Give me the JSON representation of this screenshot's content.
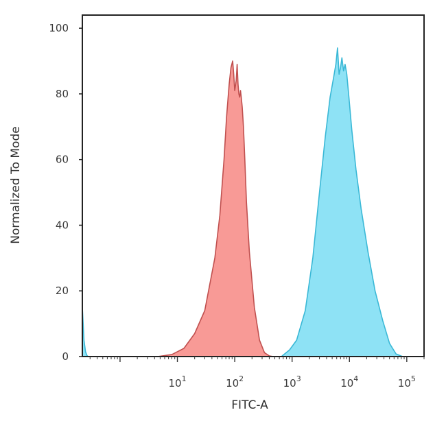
{
  "chart_data": {
    "type": "area",
    "title": "",
    "xlabel": "FITC-A",
    "ylabel": "Normalized To Mode",
    "x_scale": "log",
    "xlim": [
      0.22,
      200000
    ],
    "ylim": [
      0,
      104
    ],
    "x_ticks": [
      {
        "value": 10,
        "base": "10",
        "exp": "1"
      },
      {
        "value": 100,
        "base": "10",
        "exp": "2"
      },
      {
        "value": 1000,
        "base": "10",
        "exp": "3"
      },
      {
        "value": 10000,
        "base": "10",
        "exp": "4"
      },
      {
        "value": 100000,
        "base": "10",
        "exp": "5"
      }
    ],
    "y_ticks": [
      {
        "value": 0,
        "label": "0"
      },
      {
        "value": 20,
        "label": "20"
      },
      {
        "value": 40,
        "label": "40"
      },
      {
        "value": 60,
        "label": "60"
      },
      {
        "value": 80,
        "label": "80"
      },
      {
        "value": 100,
        "label": "100"
      }
    ],
    "grid": false,
    "legend": "none",
    "series": [
      {
        "fill": "#f89a96",
        "stroke": "#c0504f",
        "x": [
          4.5,
          8,
          13,
          20,
          30,
          45,
          55,
          65,
          72,
          80,
          86,
          92,
          96,
          100,
          106,
          110,
          114,
          118,
          122,
          126,
          130,
          135,
          142,
          150,
          160,
          180,
          220,
          270,
          330,
          400,
          470
        ],
        "y": [
          0,
          0.6,
          2.5,
          7,
          14,
          30,
          43,
          60,
          73,
          83,
          88,
          90,
          86,
          81,
          84,
          89,
          83,
          80,
          79,
          81,
          79,
          76,
          70,
          60,
          47,
          32,
          15,
          5,
          1.2,
          0.2,
          0
        ]
      },
      {
        "fill": "#8ee2f5",
        "stroke": "#3ab8d6",
        "x": [
          650,
          900,
          1200,
          1700,
          2300,
          3000,
          3800,
          4600,
          5300,
          5800,
          6200,
          6600,
          7000,
          7400,
          7900,
          8400,
          9000,
          9800,
          11000,
          13000,
          16000,
          21000,
          28000,
          38000,
          50000,
          65000,
          85000
        ],
        "y": [
          0,
          2,
          5,
          14,
          30,
          50,
          67,
          79,
          85,
          89,
          94,
          86,
          88,
          91,
          87,
          89,
          86,
          79,
          69,
          57,
          45,
          32,
          20,
          11,
          4,
          0.8,
          0
        ]
      },
      {
        "fill": "#8ee2f5",
        "stroke": "#3ab8d6",
        "x": [
          0.22,
          0.235,
          0.25,
          0.265,
          0.28
        ],
        "y": [
          15,
          5,
          1.5,
          0.3,
          0
        ]
      }
    ]
  }
}
